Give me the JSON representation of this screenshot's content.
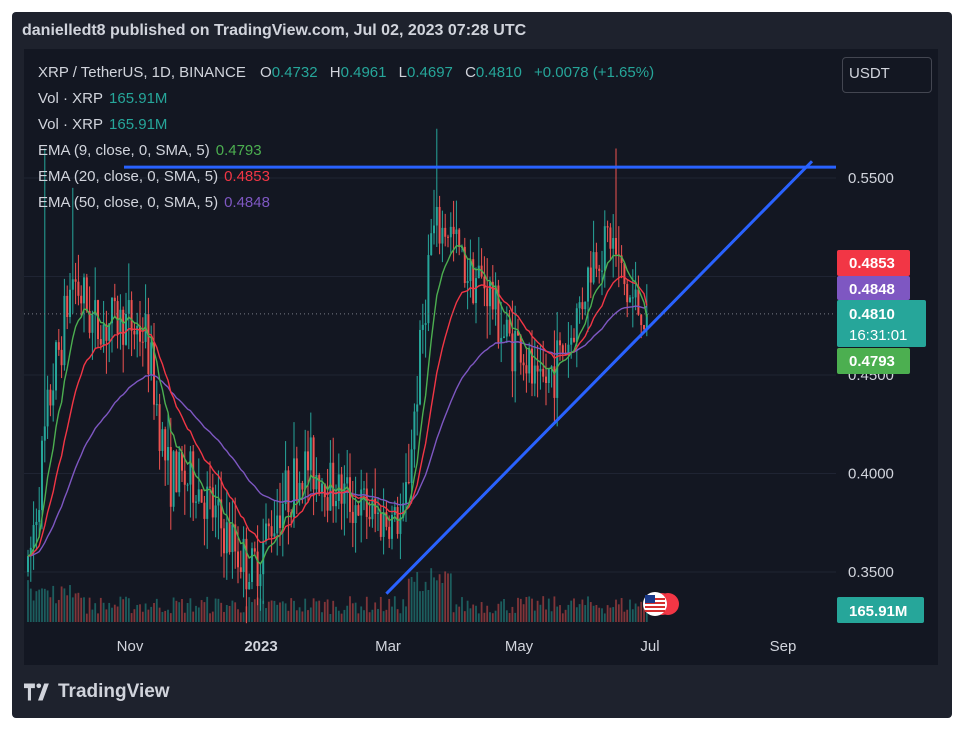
{
  "header": {
    "title": "danielledt8 published on TradingView.com, Jul 02, 2023 07:28 UTC"
  },
  "legend": {
    "symbol": "XRP / TetherUS, 1D, BINANCE",
    "open_label": "O",
    "open": "0.4732",
    "high_label": "H",
    "high": "0.4961",
    "low_label": "L",
    "low": "0.4697",
    "close_label": "C",
    "close": "0.4810",
    "change": "+0.0078 (+1.65%)",
    "vol1_label": "Vol · XRP",
    "vol1_value": "165.91M",
    "vol2_label": "Vol · XRP",
    "vol2_value": "165.91M",
    "ema9_label": "EMA (9, close, 0, SMA, 5)",
    "ema9_value": "0.4793",
    "ema20_label": "EMA (20, close, 0, SMA, 5)",
    "ema20_value": "0.4853",
    "ema50_label": "EMA (50, close, 0, SMA, 5)",
    "ema50_value": "0.4848"
  },
  "unit_button": "USDT",
  "colors": {
    "up": "#26a69a",
    "down": "#ef5350",
    "ema9": "#4caf50",
    "ema20": "#f23645",
    "ema50": "#7e57c2",
    "trendline": "#2962ff",
    "background": "#131722",
    "text": "#d1d4dc"
  },
  "price_labels": {
    "ema20": "0.4853",
    "ema50": "0.4848",
    "last": "0.4810",
    "countdown": "16:31:01",
    "ema9": "0.4793",
    "volume": "165.91M"
  },
  "footer": {
    "brand": "TradingView",
    "logo_icon": "tradingview-logo-icon"
  },
  "chart_data": {
    "type": "candlestick",
    "x_ticks": [
      "Nov",
      "2023",
      "Mar",
      "May",
      "Jul",
      "Sep"
    ],
    "y_ticks": [
      "0.3500",
      "0.4000",
      "0.4500",
      "0.5500"
    ],
    "ylim": [
      0.33,
      0.58
    ],
    "series": [
      {
        "name": "EMA (9, close, 0, SMA, 5)",
        "last": 0.4793
      },
      {
        "name": "EMA (20, close, 0, SMA, 5)",
        "last": 0.4853
      },
      {
        "name": "EMA (50, close, 0, SMA, 5)",
        "last": 0.4848
      }
    ],
    "keyframes": [
      {
        "x": 0,
        "v": 0.35
      },
      {
        "x": 8,
        "v": 0.44
      },
      {
        "x": 16,
        "v": 0.5
      },
      {
        "x": 24,
        "v": 0.475
      },
      {
        "x": 34,
        "v": 0.478
      },
      {
        "x": 42,
        "v": 0.47
      },
      {
        "x": 50,
        "v": 0.4
      },
      {
        "x": 60,
        "v": 0.395
      },
      {
        "x": 70,
        "v": 0.37
      },
      {
        "x": 80,
        "v": 0.35
      },
      {
        "x": 90,
        "v": 0.385
      },
      {
        "x": 100,
        "v": 0.405
      },
      {
        "x": 112,
        "v": 0.39
      },
      {
        "x": 124,
        "v": 0.378
      },
      {
        "x": 134,
        "v": 0.375
      },
      {
        "x": 138,
        "v": 0.43
      },
      {
        "x": 144,
        "v": 0.52
      },
      {
        "x": 150,
        "v": 0.525
      },
      {
        "x": 156,
        "v": 0.505
      },
      {
        "x": 164,
        "v": 0.495
      },
      {
        "x": 170,
        "v": 0.47
      },
      {
        "x": 176,
        "v": 0.465
      },
      {
        "x": 182,
        "v": 0.44
      },
      {
        "x": 188,
        "v": 0.455
      },
      {
        "x": 194,
        "v": 0.47
      },
      {
        "x": 202,
        "v": 0.51
      },
      {
        "x": 208,
        "v": 0.52
      },
      {
        "x": 214,
        "v": 0.49
      },
      {
        "x": 221,
        "v": 0.481
      }
    ],
    "ema_smoothing": {
      "ema9": 0.2,
      "ema20": 0.095,
      "ema50": 0.039
    },
    "volume_last": "165.91M",
    "horizontal_level": 0.5555,
    "trendline": {
      "from": {
        "x": 128,
        "v": 0.339
      },
      "to": {
        "x": 280,
        "v": 0.5585
      }
    },
    "last": {
      "open": 0.4732,
      "high": 0.4961,
      "low": 0.4697,
      "close": 0.481
    }
  }
}
